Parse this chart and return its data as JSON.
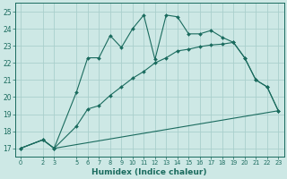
{
  "title": "",
  "xlabel": "Humidex (Indice chaleur)",
  "bg_color": "#cde8e5",
  "line_color": "#1a6b5e",
  "grid_color": "#aacfcc",
  "xlim": [
    -0.5,
    23.5
  ],
  "ylim": [
    16.5,
    25.5
  ],
  "xticks": [
    0,
    2,
    3,
    5,
    6,
    7,
    8,
    9,
    10,
    11,
    12,
    13,
    14,
    15,
    16,
    17,
    18,
    19,
    20,
    21,
    22,
    23
  ],
  "yticks": [
    17,
    18,
    19,
    20,
    21,
    22,
    23,
    24,
    25
  ],
  "line1_x": [
    0,
    2,
    3,
    5,
    6,
    7,
    8,
    9,
    10,
    11,
    12,
    13,
    14,
    15,
    16,
    17,
    18,
    19,
    20,
    21,
    22,
    23
  ],
  "line1_y": [
    17.0,
    17.5,
    17.0,
    20.3,
    22.3,
    22.3,
    23.6,
    22.9,
    24.0,
    24.8,
    22.2,
    24.8,
    24.7,
    23.7,
    23.7,
    23.9,
    23.5,
    23.2,
    22.3,
    21.0,
    20.6,
    19.2
  ],
  "line2_x": [
    0,
    2,
    3,
    5,
    6,
    7,
    8,
    9,
    10,
    11,
    12,
    13,
    14,
    15,
    16,
    17,
    18,
    19,
    20,
    21,
    22,
    23
  ],
  "line2_y": [
    17.0,
    17.5,
    17.0,
    18.3,
    19.3,
    19.5,
    20.1,
    20.6,
    21.1,
    21.5,
    22.0,
    22.3,
    22.7,
    22.8,
    22.95,
    23.05,
    23.1,
    23.2,
    22.3,
    21.0,
    20.6,
    19.2
  ],
  "line3_x": [
    0,
    2,
    3,
    23
  ],
  "line3_y": [
    17.0,
    17.5,
    17.0,
    19.2
  ]
}
